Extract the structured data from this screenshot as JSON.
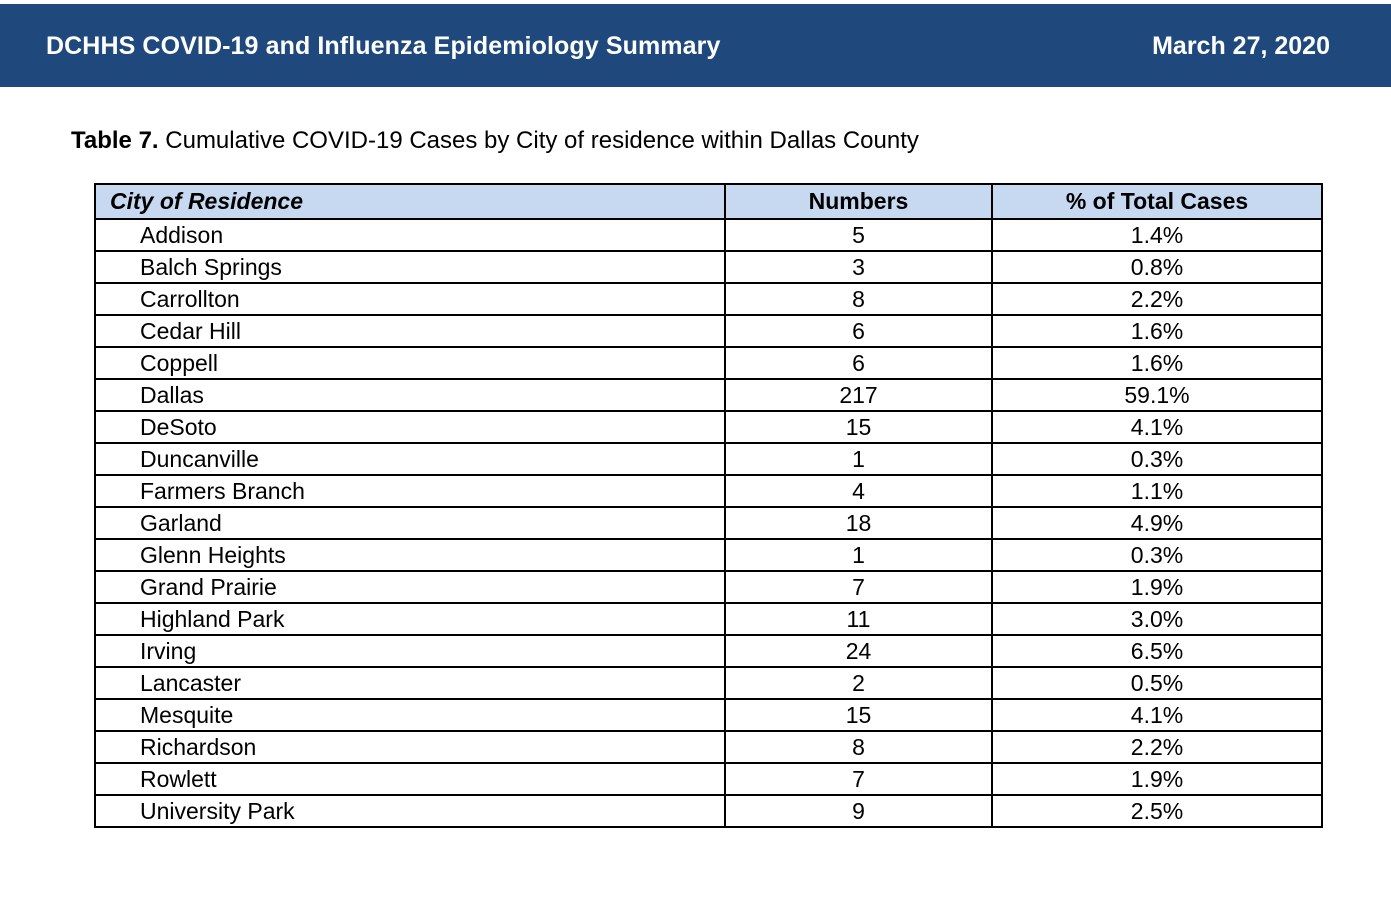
{
  "header": {
    "title": "DCHHS COVID-19 and Influenza Epidemiology Summary",
    "date": "March 27, 2020"
  },
  "caption": {
    "label": "Table 7.",
    "text": " Cumulative COVID-19 Cases by City of residence within Dallas County"
  },
  "table": {
    "columns": [
      "City of Residence",
      "Numbers",
      "% of Total Cases"
    ],
    "rows": [
      {
        "city": "Addison",
        "number": "5",
        "percent": "1.4%"
      },
      {
        "city": "Balch Springs",
        "number": "3",
        "percent": "0.8%"
      },
      {
        "city": "Carrollton",
        "number": "8",
        "percent": "2.2%"
      },
      {
        "city": "Cedar Hill",
        "number": "6",
        "percent": "1.6%"
      },
      {
        "city": "Coppell",
        "number": "6",
        "percent": "1.6%"
      },
      {
        "city": "Dallas",
        "number": "217",
        "percent": "59.1%"
      },
      {
        "city": "DeSoto",
        "number": "15",
        "percent": "4.1%"
      },
      {
        "city": "Duncanville",
        "number": "1",
        "percent": "0.3%"
      },
      {
        "city": "Farmers Branch",
        "number": "4",
        "percent": "1.1%"
      },
      {
        "city": "Garland",
        "number": "18",
        "percent": "4.9%"
      },
      {
        "city": "Glenn Heights",
        "number": "1",
        "percent": "0.3%"
      },
      {
        "city": "Grand Prairie",
        "number": "7",
        "percent": "1.9%"
      },
      {
        "city": "Highland Park",
        "number": "11",
        "percent": "3.0%"
      },
      {
        "city": "Irving",
        "number": "24",
        "percent": "6.5%"
      },
      {
        "city": "Lancaster",
        "number": "2",
        "percent": "0.5%"
      },
      {
        "city": "Mesquite",
        "number": "15",
        "percent": "4.1%"
      },
      {
        "city": "Richardson",
        "number": "8",
        "percent": "2.2%"
      },
      {
        "city": "Rowlett",
        "number": "7",
        "percent": "1.9%"
      },
      {
        "city": "University Park",
        "number": "9",
        "percent": "2.5%"
      }
    ]
  },
  "colors": {
    "header_bg": "#1f497d",
    "header_text": "#ffffff",
    "table_header_bg": "#c6d9f1",
    "border": "#000000"
  }
}
